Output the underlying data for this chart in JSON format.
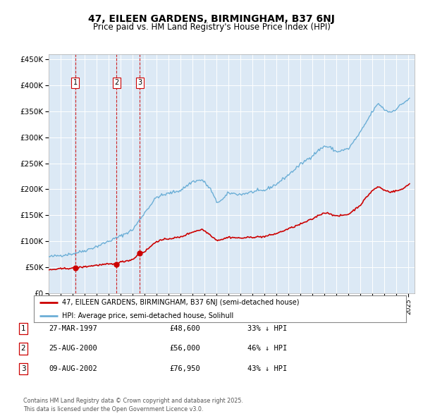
{
  "title": "47, EILEEN GARDENS, BIRMINGHAM, B37 6NJ",
  "subtitle": "Price paid vs. HM Land Registry's House Price Index (HPI)",
  "background_color": "#ffffff",
  "plot_bg_color": "#dce9f5",
  "grid_color": "#ffffff",
  "red_line_color": "#cc0000",
  "blue_line_color": "#6baed6",
  "sale_marker_color": "#cc0000",
  "vline_color": "#cc0000",
  "ylim": [
    0,
    460000
  ],
  "yticks": [
    0,
    50000,
    100000,
    150000,
    200000,
    250000,
    300000,
    350000,
    400000,
    450000
  ],
  "ytick_labels": [
    "£0",
    "£50K",
    "£100K",
    "£150K",
    "£200K",
    "£250K",
    "£300K",
    "£350K",
    "£400K",
    "£450K"
  ],
  "sales": [
    {
      "label": "1",
      "date_num": 1997.23,
      "price": 48600,
      "hpi_pct": "33% ↓ HPI",
      "date_str": "27-MAR-1997"
    },
    {
      "label": "2",
      "date_num": 2000.65,
      "price": 56000,
      "hpi_pct": "46% ↓ HPI",
      "date_str": "25-AUG-2000"
    },
    {
      "label": "3",
      "date_num": 2002.6,
      "price": 76950,
      "hpi_pct": "43% ↓ HPI",
      "date_str": "09-AUG-2002"
    }
  ],
  "legend_line1": "47, EILEEN GARDENS, BIRMINGHAM, B37 6NJ (semi-detached house)",
  "legend_line2": "HPI: Average price, semi-detached house, Solihull",
  "footer": "Contains HM Land Registry data © Crown copyright and database right 2025.\nThis data is licensed under the Open Government Licence v3.0.",
  "table_rows": [
    [
      "1",
      "27-MAR-1997",
      "£48,600",
      "33% ↓ HPI"
    ],
    [
      "2",
      "25-AUG-2000",
      "£56,000",
      "46% ↓ HPI"
    ],
    [
      "3",
      "09-AUG-2002",
      "£76,950",
      "43% ↓ HPI"
    ]
  ]
}
